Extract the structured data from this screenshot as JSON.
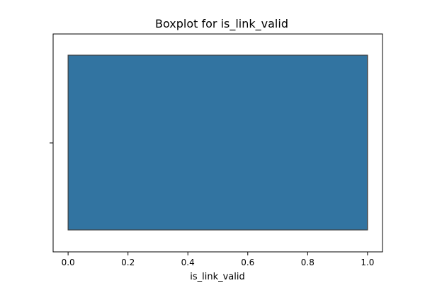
{
  "chart_data": {
    "type": "boxplot",
    "title": "Boxplot for is_link_valid",
    "xlabel": "is_link_valid",
    "ylabel": "",
    "orientation": "horizontal",
    "xlim": [
      -0.05,
      1.05
    ],
    "xticks": [
      0.0,
      0.2,
      0.4,
      0.6,
      0.8,
      1.0
    ],
    "xtick_labels": [
      "0.0",
      "0.2",
      "0.4",
      "0.6",
      "0.8",
      "1.0"
    ],
    "grid": false,
    "legend": false,
    "box": {
      "min": 0.0,
      "q1": 0.0,
      "median": 1.0,
      "q3": 1.0,
      "max": 1.0,
      "color": "#3274a1",
      "edge_color": "#3f3f3f"
    }
  }
}
